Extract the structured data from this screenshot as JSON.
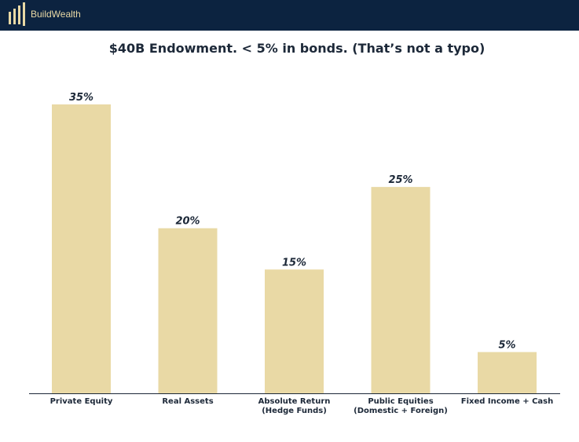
{
  "header": {
    "brand_name": "BuildWealth",
    "logo_icon": "buildwealth-bars-logo-icon",
    "background_color": "#0c2340",
    "accent_color": "#e9d9a5"
  },
  "chart_data": {
    "type": "bar",
    "title": "$40B Endowment. < 5% in bonds. (That’s not a typo)",
    "xlabel": "",
    "ylabel": "",
    "categories": [
      [
        "Private Equity"
      ],
      [
        "Real Assets"
      ],
      [
        "Absolute Return",
        "(Hedge Funds)"
      ],
      [
        "Public Equities",
        "(Domestic + Foreign)"
      ],
      [
        "Fixed Income + Cash"
      ]
    ],
    "values": [
      35,
      20,
      15,
      25,
      5
    ],
    "data_labels": [
      "35%",
      "20%",
      "15%",
      "25%",
      "5%"
    ],
    "value_unit": "%",
    "ylim": [
      0,
      35
    ],
    "grid": false,
    "legend": "none",
    "bar_color": "#e9d9a5",
    "label_color": "#1c2838"
  }
}
